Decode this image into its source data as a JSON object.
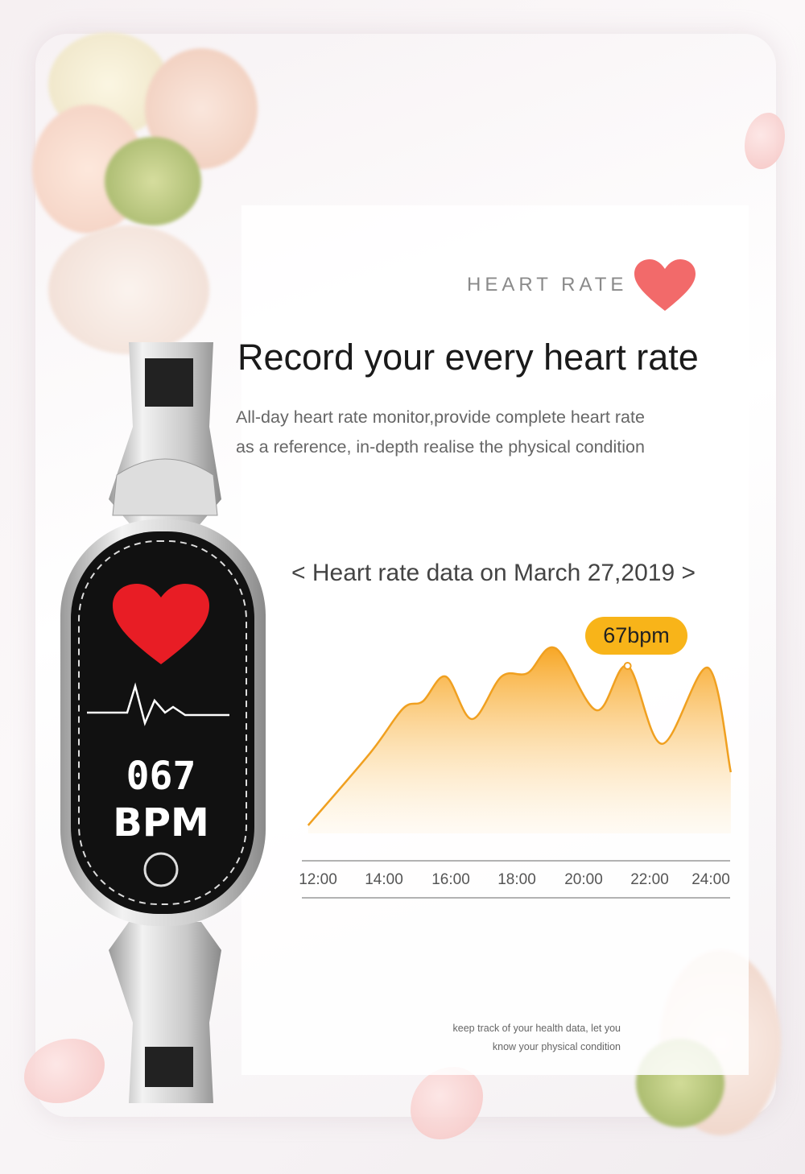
{
  "header": {
    "label": "HEART RATE",
    "icon": "heart-icon"
  },
  "headline": "Record your every heart rate",
  "description": [
    "All-day heart rate monitor,provide complete heart rate",
    "as a reference, in-depth realise the physical condition"
  ],
  "chart_title": "< Heart rate data on March 27,2019 >",
  "watch": {
    "value": "067",
    "unit": "BPM"
  },
  "footer_note": [
    "keep track of your health data, let you",
    "know your physical condition"
  ],
  "colors": {
    "accent": "#f8b419",
    "line": "#f0a020",
    "heart": "#f26a6a"
  },
  "chart_data": {
    "type": "area",
    "x_tick_labels": [
      "12:00",
      "14:00",
      "16:00",
      "18:00",
      "20:00",
      "22:00",
      "24:00"
    ],
    "x_hours": [
      11.7,
      13.6,
      14.6,
      15.2,
      15.9,
      16.7,
      17.6,
      18.4,
      19.25,
      20.5,
      21.45,
      22.5,
      23.9,
      24.6
    ],
    "relative_level": [
      0,
      41,
      66,
      70,
      84,
      60,
      84,
      86,
      100,
      65,
      90,
      46,
      89,
      30
    ],
    "highlight": {
      "x_hours": 21.45,
      "label": "67bpm"
    },
    "grid": false
  }
}
